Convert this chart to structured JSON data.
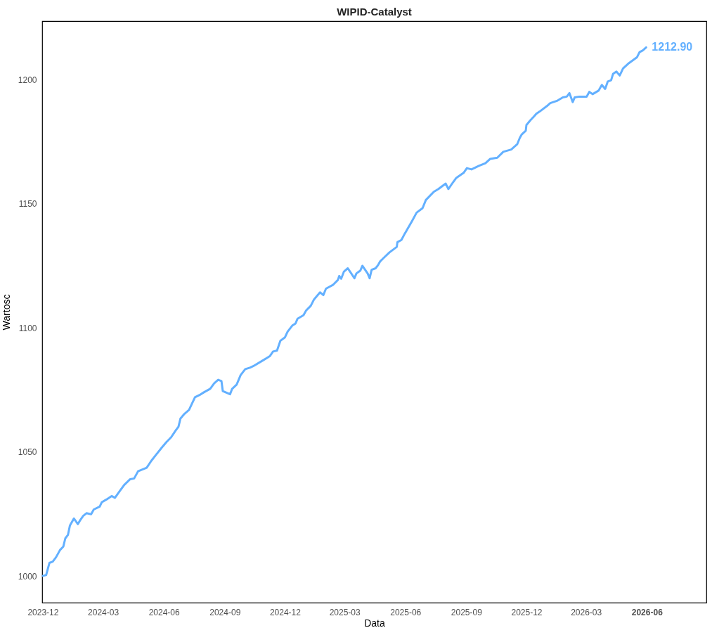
{
  "chart_data": {
    "type": "line",
    "title": "WIPID-Catalyst",
    "xlabel": "Data",
    "ylabel": "Wartosc",
    "x": [
      "2023-12-01",
      "2023-12-06",
      "2023-12-11",
      "2023-12-16",
      "2023-12-21",
      "2023-12-27",
      "2024-01-01",
      "2024-01-04",
      "2024-01-08",
      "2024-01-11",
      "2024-01-17",
      "2024-01-23",
      "2024-01-26",
      "2024-01-31",
      "2024-02-05",
      "2024-02-12",
      "2024-02-16",
      "2024-02-25",
      "2024-02-28",
      "2024-03-06",
      "2024-03-14",
      "2024-03-19",
      "2024-03-26",
      "2024-04-02",
      "2024-04-11",
      "2024-04-17",
      "2024-04-23",
      "2024-05-06",
      "2024-05-13",
      "2024-05-20",
      "2024-05-29",
      "2024-06-05",
      "2024-06-12",
      "2024-06-19",
      "2024-06-23",
      "2024-06-26",
      "2024-07-02",
      "2024-07-09",
      "2024-07-12",
      "2024-07-18",
      "2024-07-25",
      "2024-07-31",
      "2024-08-10",
      "2024-08-16",
      "2024-08-22",
      "2024-08-27",
      "2024-08-29",
      "2024-09-09",
      "2024-09-12",
      "2024-09-19",
      "2024-09-25",
      "2024-10-02",
      "2024-10-09",
      "2024-10-14",
      "2024-10-28",
      "2024-11-08",
      "2024-11-13",
      "2024-11-19",
      "2024-11-24",
      "2024-12-01",
      "2024-12-05",
      "2024-12-12",
      "2024-12-17",
      "2024-12-20",
      "2024-12-29",
      "2025-01-02",
      "2025-01-09",
      "2025-01-14",
      "2025-01-23",
      "2025-01-28",
      "2025-02-01",
      "2025-02-12",
      "2025-02-19",
      "2025-02-21",
      "2025-02-24",
      "2025-02-28",
      "2025-03-06",
      "2025-03-16",
      "2025-03-19",
      "2025-03-25",
      "2025-03-28",
      "2025-04-05",
      "2025-04-08",
      "2025-04-11",
      "2025-04-17",
      "2025-04-21",
      "2025-04-24",
      "2025-04-29",
      "2025-05-08",
      "2025-05-19",
      "2025-05-20",
      "2025-05-26",
      "2025-05-31",
      "2025-06-11",
      "2025-06-18",
      "2025-06-27",
      "2025-07-02",
      "2025-07-14",
      "2025-07-21",
      "2025-08-01",
      "2025-08-05",
      "2025-08-12",
      "2025-08-17",
      "2025-08-28",
      "2025-09-02",
      "2025-09-09",
      "2025-09-20",
      "2025-09-30",
      "2025-10-07",
      "2025-10-18",
      "2025-10-27",
      "2025-11-08",
      "2025-11-14",
      "2025-11-17",
      "2025-11-21",
      "2025-11-24",
      "2025-11-30",
      "2025-12-01",
      "2025-12-07",
      "2025-12-12",
      "2025-12-16",
      "2025-12-21",
      "2026-01-01",
      "2026-01-06",
      "2026-01-17",
      "2026-01-25",
      "2026-01-31",
      "2026-02-04",
      "2026-02-09",
      "2026-02-12",
      "2026-02-19",
      "2026-03-02",
      "2026-03-06",
      "2026-03-11",
      "2026-03-20",
      "2026-03-25",
      "2026-03-30",
      "2026-04-03",
      "2026-04-08",
      "2026-04-11",
      "2026-04-16",
      "2026-04-21",
      "2026-04-26",
      "2026-05-05",
      "2026-05-17",
      "2026-05-21",
      "2026-05-26",
      "2026-05-31"
    ],
    "series": [
      {
        "color": "#63b0ff",
        "values": [
          1000.2,
          1000.5,
          1005.4,
          1005.9,
          1007.7,
          1010.6,
          1012.0,
          1015.3,
          1016.7,
          1020.5,
          1023.3,
          1021.0,
          1022.4,
          1024.3,
          1025.4,
          1025.0,
          1026.9,
          1028.1,
          1029.8,
          1030.9,
          1032.3,
          1031.6,
          1034.2,
          1036.8,
          1039.1,
          1039.4,
          1042.3,
          1043.7,
          1046.5,
          1048.9,
          1051.9,
          1054.1,
          1056.0,
          1058.8,
          1060.2,
          1063.5,
          1065.4,
          1067.0,
          1068.7,
          1072.1,
          1073.0,
          1074.0,
          1075.5,
          1077.7,
          1079.1,
          1078.6,
          1074.6,
          1073.3,
          1075.4,
          1077.2,
          1081.0,
          1083.4,
          1084.0,
          1084.6,
          1086.8,
          1088.6,
          1090.5,
          1090.9,
          1094.8,
          1096.2,
          1098.5,
          1100.9,
          1101.8,
          1103.7,
          1105.1,
          1107.0,
          1108.9,
          1111.5,
          1114.3,
          1113.2,
          1115.8,
          1117.4,
          1119.3,
          1120.9,
          1119.8,
          1122.6,
          1124.0,
          1120.0,
          1121.9,
          1123.1,
          1125.0,
          1121.9,
          1120.0,
          1123.4,
          1124.0,
          1125.4,
          1126.8,
          1128.1,
          1130.4,
          1132.6,
          1134.5,
          1135.4,
          1137.9,
          1143.0,
          1146.4,
          1148.2,
          1151.5,
          1154.8,
          1155.9,
          1158.1,
          1155.9,
          1158.6,
          1160.4,
          1162.4,
          1164.3,
          1163.8,
          1165.2,
          1166.3,
          1168.0,
          1168.5,
          1170.9,
          1171.8,
          1173.2,
          1173.9,
          1176.5,
          1177.9,
          1179.4,
          1181.7,
          1183.6,
          1185.0,
          1186.2,
          1187.1,
          1189.3,
          1190.5,
          1191.5,
          1192.8,
          1193.1,
          1194.5,
          1190.9,
          1192.8,
          1193.1,
          1193.1,
          1195.0,
          1194.1,
          1195.5,
          1197.8,
          1196.2,
          1199.2,
          1199.7,
          1202.3,
          1203.2,
          1201.6,
          1204.4,
          1206.6,
          1208.9,
          1211.0,
          1211.7,
          1212.9
        ]
      }
    ],
    "xlim": [
      "2023-11-30",
      "2026-08-30"
    ],
    "xticks": [
      "2023-12",
      "2024-03",
      "2024-06",
      "2024-09",
      "2024-12",
      "2025-03",
      "2025-06",
      "2025-09",
      "2025-12",
      "2026-03",
      "2026-06"
    ],
    "ylim": [
      989.4,
      1223.5
    ],
    "yticks": [
      1000,
      1050,
      1100,
      1150,
      1200
    ],
    "annotations": [
      {
        "text": "1212.90",
        "x": "2026-05-31",
        "y": 1212.9
      }
    ]
  }
}
